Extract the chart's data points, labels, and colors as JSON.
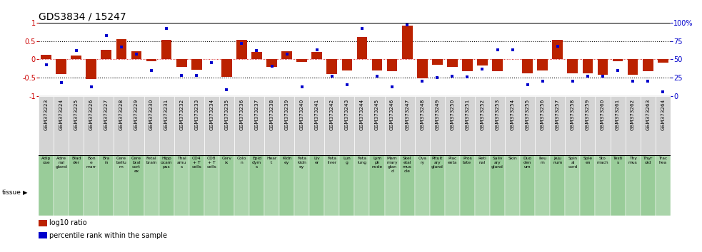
{
  "title": "GDS3834 / 15247",
  "gsm_labels": [
    "GSM373223",
    "GSM373224",
    "GSM373225",
    "GSM373226",
    "GSM373227",
    "GSM373228",
    "GSM373229",
    "GSM373230",
    "GSM373231",
    "GSM373232",
    "GSM373233",
    "GSM373234",
    "GSM373235",
    "GSM373236",
    "GSM373237",
    "GSM373238",
    "GSM373239",
    "GSM373240",
    "GSM373241",
    "GSM373242",
    "GSM373243",
    "GSM373244",
    "GSM373245",
    "GSM373246",
    "GSM373247",
    "GSM373248",
    "GSM373249",
    "GSM373250",
    "GSM373251",
    "GSM373252",
    "GSM373253",
    "GSM373254",
    "GSM373255",
    "GSM373256",
    "GSM373257",
    "GSM373258",
    "GSM373259",
    "GSM373260",
    "GSM373261",
    "GSM373262",
    "GSM373263",
    "GSM373264"
  ],
  "tissue_labels": [
    "Adip\nose",
    "Adre\nnal\ngland",
    "Blad\nder",
    "Bon\ne\nmarr",
    "Bra\nin",
    "Cere\nbellu\nm",
    "Cere\nbral\ncort\nex",
    "Fetal\nbrain",
    "Hipp\nocam\npus",
    "Thal\namu\ns",
    "CD4\n+ T\ncells",
    "CD8\n+ T\ncells",
    "Cerv\nix",
    "Colo\nn",
    "Epid\ndym\ns",
    "Hear\nt",
    "Kidn\ney",
    "Feta\nkidn\ney",
    "Liv\ner",
    "Feta\nliver",
    "Lun\ng",
    "Feta\nlung",
    "Lym\nph\nnode",
    "Mam\nmary\nglan\nd",
    "Skel\netal\nmus\ncle",
    "Ova\nry",
    "Pituit\nary\ngland",
    "Plac\nenta",
    "Pros\ntate",
    "Reti\nnal",
    "Saliv\nary\ngland",
    "Skin",
    "Duo\nden\num",
    "Ileu\nm",
    "Jeju\nnum",
    "Spin\nal\ncord",
    "Sple\nen",
    "Sto\nmach",
    "Testi\ns",
    "Thy\nmus",
    "Thyr\noid",
    "Trac\nhea"
  ],
  "log10_ratio": [
    0.12,
    -0.4,
    0.1,
    -0.55,
    0.25,
    0.55,
    0.22,
    -0.05,
    0.53,
    -0.22,
    -0.28,
    0.0,
    -0.48,
    0.52,
    0.2,
    -0.22,
    0.22,
    -0.08,
    0.2,
    -0.4,
    -0.3,
    0.6,
    -0.3,
    -0.32,
    0.92,
    -0.52,
    -0.15,
    -0.22,
    -0.32,
    -0.18,
    -0.32,
    0.0,
    -0.38,
    -0.3,
    0.52,
    -0.38,
    -0.38,
    -0.42,
    -0.05,
    -0.42,
    -0.32,
    -0.1
  ],
  "percentile": [
    42,
    18,
    62,
    12,
    82,
    67,
    57,
    35,
    92,
    28,
    28,
    45,
    8,
    72,
    62,
    40,
    57,
    12,
    63,
    27,
    15,
    92,
    27,
    12,
    97,
    20,
    25,
    27,
    26,
    37,
    63,
    63,
    15,
    20,
    68,
    20,
    27,
    27,
    35,
    20,
    20,
    5
  ],
  "bar_color": "#bb2200",
  "dot_color": "#0000cc",
  "ylim": [
    -1.0,
    1.0
  ],
  "yticks_left": [
    -1.0,
    -0.5,
    0.0,
    0.5,
    1.0
  ],
  "yticks_right": [
    0,
    25,
    50,
    75,
    100
  ],
  "bg_color_gsm": "#d4d4d4",
  "bg_color_tissue_green": "#99cc99",
  "tissue_border_color": "#888888"
}
